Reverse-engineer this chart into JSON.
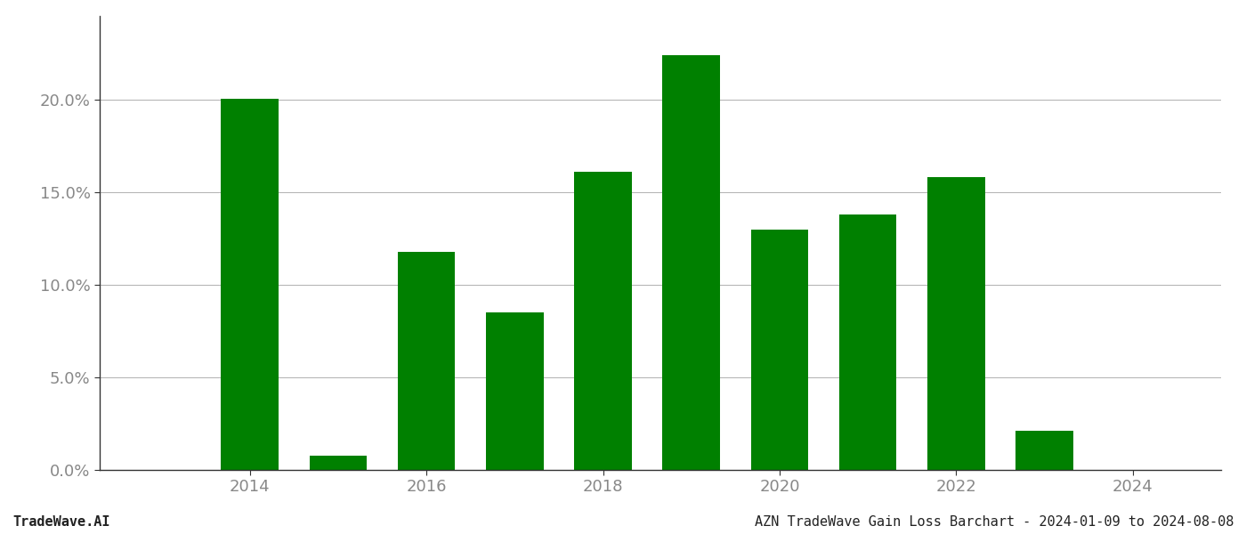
{
  "years": [
    2013,
    2014,
    2015,
    2016,
    2017,
    2018,
    2019,
    2020,
    2021,
    2022,
    2023
  ],
  "values": [
    0.0,
    0.2005,
    0.0075,
    0.1175,
    0.085,
    0.161,
    0.224,
    0.1295,
    0.138,
    0.158,
    0.021
  ],
  "bar_color": "#008000",
  "background_color": "#ffffff",
  "grid_color": "#b0b0b0",
  "title_left": "TradeWave.AI",
  "title_right": "AZN TradeWave Gain Loss Barchart - 2024-01-09 to 2024-08-08",
  "title_fontsize": 11,
  "axis_label_color": "#888888",
  "spine_color": "#333333",
  "xlim": [
    2012.3,
    2025.0
  ],
  "ylim": [
    0,
    0.245
  ],
  "yticks": [
    0.0,
    0.05,
    0.1,
    0.15,
    0.2
  ],
  "xticks": [
    2014,
    2016,
    2018,
    2020,
    2022,
    2024
  ],
  "bar_width": 0.65
}
